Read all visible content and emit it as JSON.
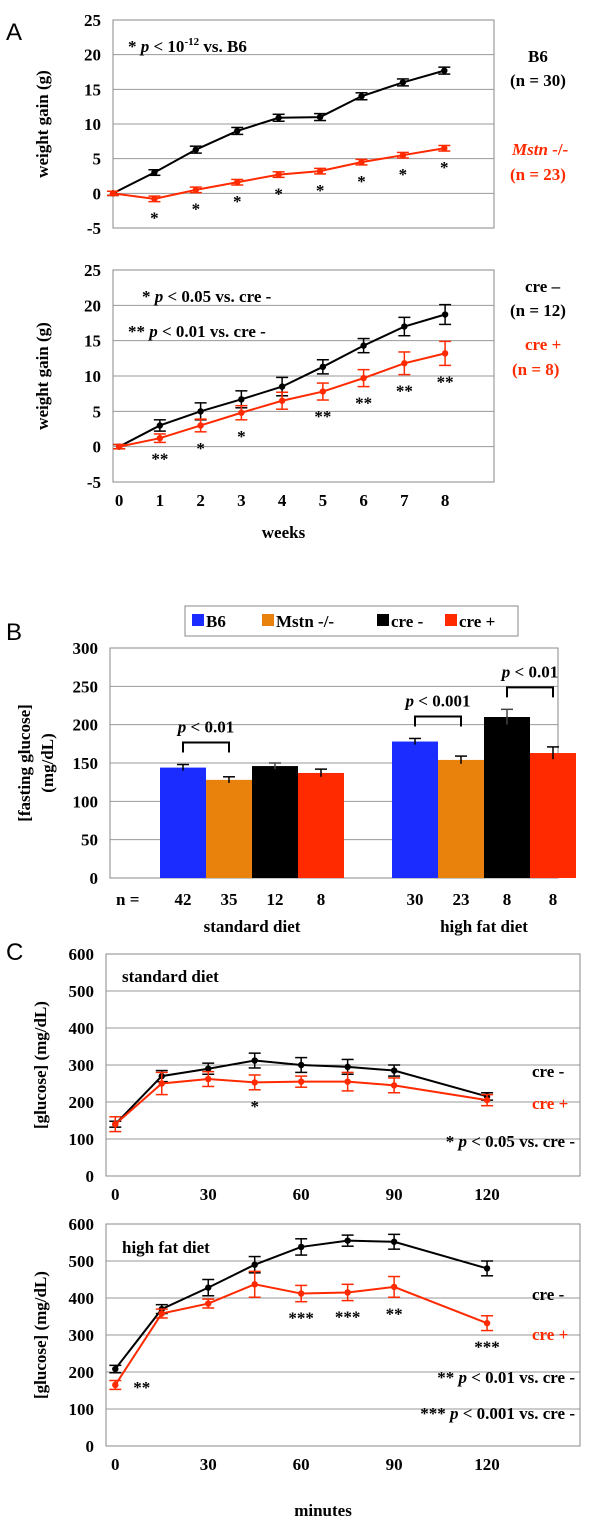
{
  "panels": {
    "A": "A",
    "B": "B",
    "C": "C"
  },
  "colors": {
    "black": "#000000",
    "red": "#ff2a00",
    "blue": "#1a2cff",
    "orange": "#e8820c",
    "grid": "#9a9a9a"
  },
  "chart_data": [
    {
      "id": "A1",
      "type": "line",
      "ylabel": "weight gain (g)",
      "ylim": [
        -5,
        25
      ],
      "yticks": [
        "-5",
        "0",
        "5",
        "10",
        "15",
        "20",
        "25"
      ],
      "x": [
        0,
        1,
        2,
        3,
        4,
        5,
        6,
        7,
        8
      ],
      "series": [
        {
          "name": "B6",
          "color": "#000000",
          "values": [
            0,
            3.0,
            6.3,
            9.0,
            10.9,
            11.0,
            14.0,
            16.0,
            17.7
          ],
          "err": [
            0.3,
            0.4,
            0.5,
            0.5,
            0.5,
            0.5,
            0.5,
            0.5,
            0.5
          ]
        },
        {
          "name": "Mstn -/-",
          "color": "#ff2a00",
          "values": [
            0,
            -0.8,
            0.5,
            1.6,
            2.7,
            3.2,
            4.5,
            5.5,
            6.5
          ],
          "err": [
            0.3,
            0.4,
            0.4,
            0.4,
            0.4,
            0.4,
            0.4,
            0.4,
            0.4
          ]
        }
      ],
      "sig": [
        {
          "x": 1,
          "text": "*"
        },
        {
          "x": 2,
          "text": "*"
        },
        {
          "x": 3,
          "text": "*"
        },
        {
          "x": 4,
          "text": "*"
        },
        {
          "x": 5,
          "text": "*"
        },
        {
          "x": 6,
          "text": "*"
        },
        {
          "x": 7,
          "text": "*"
        },
        {
          "x": 8,
          "text": "*"
        }
      ],
      "stat_note": {
        "pre": "* ",
        "p": "p",
        "mid": " < 10",
        "sup": "-12",
        "post": " vs. B6"
      },
      "labels": [
        {
          "text": "B6",
          "color": "#000000",
          "italic": false
        },
        {
          "text": "(n = 30)",
          "color": "#000000",
          "italic": false
        },
        {
          "text": "Mstn",
          "suffix": " -/-",
          "color": "#ff2a00",
          "italic": true
        },
        {
          "text": "(n = 23)",
          "color": "#ff2a00",
          "italic": false
        }
      ]
    },
    {
      "id": "A2",
      "type": "line",
      "ylabel": "weight gain (g)",
      "xlabel": "weeks",
      "ylim": [
        -5,
        25
      ],
      "yticks": [
        "-5",
        "0",
        "5",
        "10",
        "15",
        "20",
        "25"
      ],
      "xticks": [
        "0",
        "1",
        "2",
        "3",
        "4",
        "5",
        "6",
        "7",
        "8"
      ],
      "x": [
        0,
        1,
        2,
        3,
        4,
        5,
        6,
        7,
        8
      ],
      "series": [
        {
          "name": "cre –",
          "color": "#000000",
          "values": [
            0,
            3.0,
            5.0,
            6.7,
            8.5,
            11.3,
            14.3,
            17.0,
            18.7
          ],
          "err": [
            0.3,
            0.8,
            1.2,
            1.2,
            1.3,
            1.0,
            1.0,
            1.3,
            1.4
          ]
        },
        {
          "name": "cre +",
          "color": "#ff2a00",
          "values": [
            0,
            1.2,
            3.0,
            4.8,
            6.5,
            7.8,
            9.7,
            11.8,
            13.2
          ],
          "err": [
            0.3,
            0.6,
            0.9,
            1.0,
            1.2,
            1.2,
            1.2,
            1.6,
            1.7
          ]
        }
      ],
      "sig": [
        {
          "x": 1,
          "text": "**"
        },
        {
          "x": 2,
          "text": "*"
        },
        {
          "x": 3,
          "text": "*"
        },
        {
          "x": 5,
          "text": "**"
        },
        {
          "x": 6,
          "text": "**"
        },
        {
          "x": 7,
          "text": "**"
        },
        {
          "x": 8,
          "text": "**"
        }
      ],
      "stat_lines": [
        {
          "pre": "* ",
          "p": "p",
          "post": " < 0.05 vs. cre -"
        },
        {
          "pre": "** ",
          "p": "p",
          "post": " < 0.01 vs. cre -"
        }
      ],
      "labels": [
        {
          "text": "cre –",
          "color": "#000000"
        },
        {
          "text": "(n = 12)",
          "color": "#000000"
        },
        {
          "text": "cre +",
          "color": "#ff2a00"
        },
        {
          "text": "(n = 8)",
          "color": "#ff2a00"
        }
      ]
    },
    {
      "id": "B",
      "type": "bar",
      "ylabel": [
        "[fasting glucose]",
        "(mg/dL)"
      ],
      "ylim": [
        0,
        300
      ],
      "yticks": [
        "0",
        "50",
        "100",
        "150",
        "200",
        "250",
        "300"
      ],
      "legend": [
        {
          "name": "B6",
          "color": "#1a2cff"
        },
        {
          "name": "Mstn -/-",
          "color": "#e8820c"
        },
        {
          "name": "cre -",
          "color": "#000000"
        },
        {
          "name": "cre +",
          "color": "#ff2a00"
        }
      ],
      "groups": [
        {
          "name": "standard diet",
          "values": [
            144,
            128,
            146,
            137
          ],
          "err": [
            4,
            4,
            4,
            5
          ],
          "n": [
            "42",
            "35",
            "12",
            "8"
          ]
        },
        {
          "name": "high fat diet",
          "values": [
            178,
            154,
            210,
            163
          ],
          "err": [
            4,
            5,
            10,
            8
          ],
          "n": [
            "30",
            "23",
            "8",
            "8"
          ]
        }
      ],
      "n_prefix": "n =",
      "brackets": [
        {
          "group": 0,
          "from": 0,
          "to": 1,
          "p": "p",
          "text": " < 0.01"
        },
        {
          "group": 1,
          "from": 0,
          "to": 1,
          "p": "p",
          "text": " < 0.001"
        },
        {
          "group": 1,
          "from": 2,
          "to": 3,
          "p": "p",
          "text": " < 0.01"
        }
      ]
    },
    {
      "id": "C1",
      "type": "line",
      "title": "standard diet",
      "ylabel": "[glucose] (mg/dL)",
      "ylim": [
        0,
        600
      ],
      "yticks": [
        "0",
        "100",
        "200",
        "300",
        "400",
        "500",
        "600"
      ],
      "xticks": [
        "0",
        "30",
        "60",
        "90",
        "120"
      ],
      "xmax": 150,
      "x": [
        0,
        15,
        30,
        45,
        60,
        75,
        90,
        120
      ],
      "series": [
        {
          "name": "cre -",
          "color": "#000000",
          "values": [
            140,
            270,
            290,
            312,
            300,
            295,
            285,
            215
          ],
          "err": [
            8,
            15,
            15,
            20,
            20,
            20,
            15,
            10
          ]
        },
        {
          "name": "cre +",
          "color": "#ff2a00",
          "values": [
            140,
            250,
            262,
            253,
            255,
            255,
            245,
            205
          ],
          "err": [
            20,
            30,
            20,
            20,
            15,
            25,
            20,
            15
          ]
        }
      ],
      "sig": [
        {
          "x": 45,
          "text": "*"
        }
      ],
      "stat_lines": [
        {
          "pre": "* ",
          "p": "p",
          "post": " < 0.05 vs. cre -"
        }
      ],
      "labels": [
        {
          "text": "cre -",
          "color": "#000000"
        },
        {
          "text": "cre +",
          "color": "#ff2a00"
        }
      ]
    },
    {
      "id": "C2",
      "type": "line",
      "title": "high fat diet",
      "ylabel": "[glucose] (mg/dL)",
      "xlabel": "minutes",
      "ylim": [
        0,
        600
      ],
      "yticks": [
        "0",
        "100",
        "200",
        "300",
        "400",
        "500",
        "600"
      ],
      "xticks": [
        "0",
        "30",
        "60",
        "90",
        "120"
      ],
      "xmax": 150,
      "x": [
        0,
        15,
        30,
        45,
        60,
        75,
        90,
        120
      ],
      "series": [
        {
          "name": "cre -",
          "color": "#000000",
          "values": [
            208,
            370,
            428,
            490,
            538,
            555,
            552,
            480
          ],
          "err": [
            10,
            12,
            22,
            22,
            22,
            15,
            20,
            20
          ]
        },
        {
          "name": "cre +",
          "color": "#ff2a00",
          "values": [
            165,
            358,
            385,
            437,
            412,
            415,
            430,
            332
          ],
          "err": [
            12,
            12,
            12,
            35,
            22,
            22,
            28,
            20
          ]
        }
      ],
      "sig": [
        {
          "x": 0,
          "text": "**",
          "side": "right"
        },
        {
          "x": 60,
          "text": "***"
        },
        {
          "x": 75,
          "text": "***"
        },
        {
          "x": 90,
          "text": "**"
        },
        {
          "x": 120,
          "text": "***"
        }
      ],
      "stat_lines": [
        {
          "pre": "** ",
          "p": "p",
          "post": " < 0.01 vs. cre -"
        },
        {
          "pre": "*** ",
          "p": "p",
          "post": " < 0.001 vs. cre -"
        }
      ],
      "labels": [
        {
          "text": "cre -",
          "color": "#000000"
        },
        {
          "text": "cre +",
          "color": "#ff2a00"
        }
      ]
    }
  ]
}
